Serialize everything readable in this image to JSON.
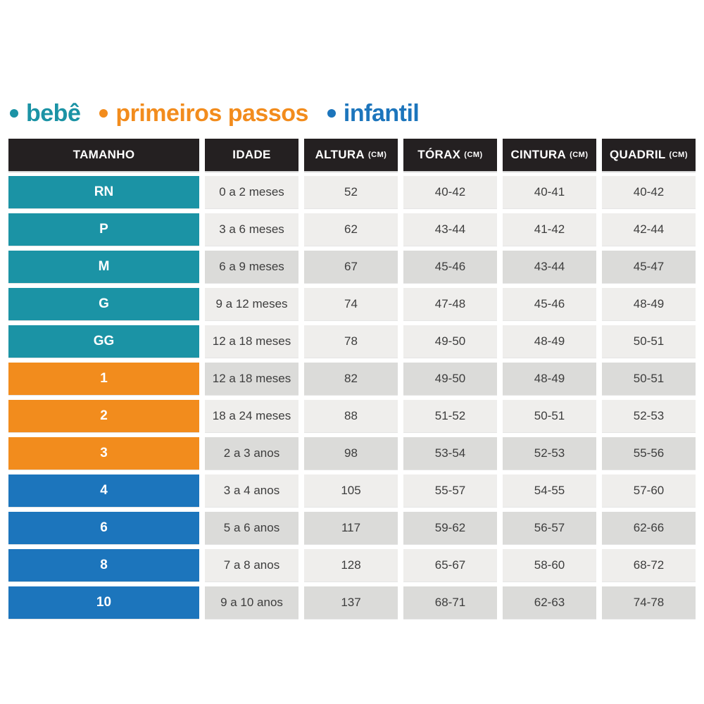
{
  "legend": {
    "items": [
      {
        "label": "bebê",
        "color": "#1B93A5",
        "color_key": "teal"
      },
      {
        "label": "primeiros passos",
        "color": "#F28C1D",
        "color_key": "orange"
      },
      {
        "label": "infantil",
        "color": "#1C75BC",
        "color_key": "blue"
      }
    ]
  },
  "table": {
    "headers": [
      {
        "label": "TAMANHO",
        "unit": ""
      },
      {
        "label": "IDADE",
        "unit": ""
      },
      {
        "label": "ALTURA",
        "unit": "(CM)"
      },
      {
        "label": "TÓRAX",
        "unit": "(CM)"
      },
      {
        "label": "CINTURA",
        "unit": "(CM)"
      },
      {
        "label": "QUADRIL",
        "unit": "(CM)"
      }
    ],
    "rows": [
      {
        "size": "RN",
        "age": "0 a 2 meses",
        "height": "52",
        "chest": "40-42",
        "waist": "40-41",
        "hip": "40-42",
        "group": "bebe",
        "shade": "light"
      },
      {
        "size": "P",
        "age": "3 a 6 meses",
        "height": "62",
        "chest": "43-44",
        "waist": "41-42",
        "hip": "42-44",
        "group": "bebe",
        "shade": "light"
      },
      {
        "size": "M",
        "age": "6 a 9 meses",
        "height": "67",
        "chest": "45-46",
        "waist": "43-44",
        "hip": "45-47",
        "group": "bebe",
        "shade": "dark"
      },
      {
        "size": "G",
        "age": "9 a 12 meses",
        "height": "74",
        "chest": "47-48",
        "waist": "45-46",
        "hip": "48-49",
        "group": "bebe",
        "shade": "light"
      },
      {
        "size": "GG",
        "age": "12 a 18 meses",
        "height": "78",
        "chest": "49-50",
        "waist": "48-49",
        "hip": "50-51",
        "group": "bebe",
        "shade": "light"
      },
      {
        "size": "1",
        "age": "12 a 18 meses",
        "height": "82",
        "chest": "49-50",
        "waist": "48-49",
        "hip": "50-51",
        "group": "passos",
        "shade": "dark"
      },
      {
        "size": "2",
        "age": "18 a 24 meses",
        "height": "88",
        "chest": "51-52",
        "waist": "50-51",
        "hip": "52-53",
        "group": "passos",
        "shade": "light"
      },
      {
        "size": "3",
        "age": "2 a 3 anos",
        "height": "98",
        "chest": "53-54",
        "waist": "52-53",
        "hip": "55-56",
        "group": "passos",
        "shade": "dark"
      },
      {
        "size": "4",
        "age": "3 a 4 anos",
        "height": "105",
        "chest": "55-57",
        "waist": "54-55",
        "hip": "57-60",
        "group": "infantil",
        "shade": "light"
      },
      {
        "size": "6",
        "age": "5 a 6 anos",
        "height": "117",
        "chest": "59-62",
        "waist": "56-57",
        "hip": "62-66",
        "group": "infantil",
        "shade": "dark"
      },
      {
        "size": "8",
        "age": "7 a 8 anos",
        "height": "128",
        "chest": "65-67",
        "waist": "58-60",
        "hip": "68-72",
        "group": "infantil",
        "shade": "light"
      },
      {
        "size": "10",
        "age": "9 a 10 anos",
        "height": "137",
        "chest": "68-71",
        "waist": "62-63",
        "hip": "74-78",
        "group": "infantil",
        "shade": "dark"
      }
    ]
  },
  "colors": {
    "teal": "#1B93A5",
    "orange": "#F28C1D",
    "blue": "#1C75BC",
    "header_bg": "#242021",
    "row_light": "#EFEEEC",
    "row_dark": "#DBDBD9",
    "cell_text": "#3D3D3D"
  },
  "chart_data": {
    "type": "table",
    "title": "",
    "columns": [
      "TAMANHO",
      "IDADE",
      "ALTURA (CM)",
      "TÓRAX (CM)",
      "CINTURA (CM)",
      "QUADRIL (CM)"
    ],
    "rows": [
      [
        "RN",
        "0 a 2 meses",
        52,
        "40-42",
        "40-41",
        "40-42"
      ],
      [
        "P",
        "3 a 6 meses",
        62,
        "43-44",
        "41-42",
        "42-44"
      ],
      [
        "M",
        "6 a 9 meses",
        67,
        "45-46",
        "43-44",
        "45-47"
      ],
      [
        "G",
        "9 a 12 meses",
        74,
        "47-48",
        "45-46",
        "48-49"
      ],
      [
        "GG",
        "12 a 18 meses",
        78,
        "49-50",
        "48-49",
        "50-51"
      ],
      [
        "1",
        "12 a 18 meses",
        82,
        "49-50",
        "48-49",
        "50-51"
      ],
      [
        "2",
        "18 a 24 meses",
        88,
        "51-52",
        "50-51",
        "52-53"
      ],
      [
        "3",
        "2 a 3 anos",
        98,
        "53-54",
        "52-53",
        "55-56"
      ],
      [
        "4",
        "3 a 4 anos",
        105,
        "55-57",
        "54-55",
        "57-60"
      ],
      [
        "6",
        "5 a 6 anos",
        117,
        "59-62",
        "56-57",
        "62-66"
      ],
      [
        "8",
        "7 a 8 anos",
        128,
        "65-67",
        "58-60",
        "68-72"
      ],
      [
        "10",
        "9 a 10 anos",
        137,
        "68-71",
        "62-63",
        "74-78"
      ]
    ],
    "row_groups": [
      {
        "label": "bebê",
        "color": "#1B93A5",
        "sizes": [
          "RN",
          "P",
          "M",
          "G",
          "GG"
        ]
      },
      {
        "label": "primeiros passos",
        "color": "#F28C1D",
        "sizes": [
          "1",
          "2",
          "3"
        ]
      },
      {
        "label": "infantil",
        "color": "#1C75BC",
        "sizes": [
          "4",
          "6",
          "8",
          "10"
        ]
      }
    ]
  }
}
